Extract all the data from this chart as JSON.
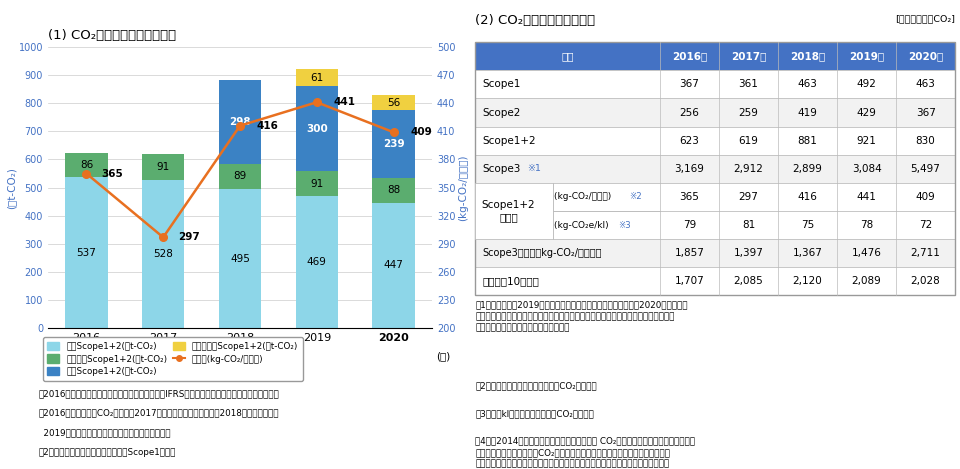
{
  "title_left": "(1) CO₂排出量・原単位の推移",
  "title_right": "(2) CO₂排出量実績・原単位",
  "unit_right_top": "[単位：千トンCO₂]",
  "years": [
    2016,
    2017,
    2018,
    2019,
    2020
  ],
  "japan_scope12": [
    537,
    528,
    495,
    469,
    447
  ],
  "oceania_scope12": [
    86,
    91,
    89,
    91,
    88
  ],
  "europe_scope12": [
    0,
    0,
    298,
    300,
    239
  ],
  "sea_scope12": [
    0,
    0,
    0,
    61,
    56
  ],
  "gentan_line": [
    365,
    297,
    416,
    441,
    409
  ],
  "bar_colors": {
    "japan": "#8DD6E8",
    "oceania": "#5BAD6F",
    "europe": "#3B82C4",
    "sea": "#F0D040"
  },
  "line_color": "#E87020",
  "left_ylabel": "(千t-CO₂)",
  "right_ylabel": "(kg-CO₂/百万円)",
  "left_ylim": [
    0,
    1000
  ],
  "right_ylim": [
    200,
    500
  ],
  "left_yticks": [
    0,
    100,
    200,
    300,
    400,
    500,
    600,
    700,
    800,
    900,
    1000
  ],
  "right_yticks": [
    200,
    230,
    260,
    290,
    320,
    350,
    380,
    410,
    440,
    470,
    500
  ],
  "xlabel": "(年)",
  "legend_items": [
    "日本Scope1+2(千t-CO₂)",
    "オセアニScope1+2(千t-CO₂)",
    "欧巚Scope1+2(千t-CO₂)",
    "東南アジアScope1+2(千t-CO₂)",
    "原単位(kg-CO₂/百万円)"
  ],
  "axis_label_color": "#4472C4",
  "table_header_color": "#4472C4",
  "col_headers": [
    "項目",
    "2016年",
    "2017年",
    "2018年",
    "2019年",
    "2020年"
  ],
  "row_data_simple": [
    [
      "Scope1",
      "367",
      "361",
      "463",
      "492",
      "463"
    ],
    [
      "Scope2",
      "256",
      "259",
      "419",
      "429",
      "367"
    ],
    [
      "Scope1+2",
      "623",
      "619",
      "881",
      "921",
      "830"
    ],
    [
      "Scope3",
      "3,169",
      "2,912",
      "2,899",
      "3,084",
      "5,497"
    ],
    [
      "Scope3原単位（kg-CO₂/百万円）",
      "1,857",
      "1,397",
      "1,367",
      "1,476",
      "2,711"
    ],
    [
      "売上高（10億円）",
      "1,707",
      "2,085",
      "2,120",
      "2,089",
      "2,028"
    ]
  ],
  "gentan_sub_a_vals": [
    "365",
    "297",
    "416",
    "441",
    "409"
  ],
  "gentan_sub_b_vals": [
    "79",
    "81",
    "75",
    "78",
    "72"
  ],
  "footnotes_left": [
    "2016年から原単位の算出に国際財務報告基準（IFRS）に準拠した売上収益を適用している。",
    "2016年からは海外CO₂排出量は2017年まではオセアニアのみ、",
    "2019年からは東南アジアが範囲に加わっている。",
    "2018年からは欧州、",
    "›集計範囲：日本および海外事楮のScope1＋２。"
  ],
  "footnotes_right": [
    "1　集計範囲：2019年まではアサヒビール、アサヒ飲料のみ　2020年からはア\n　　サヒビール、アサヒ飲料、アサヒヨーロッパアンドインターナショナル、アサヒ\n　　ホールディングスオーストラリア。",
    "2　売上収益に対する生産原単位CO₂排出量。",
    "3　製品klに対する生産原単位CO₂排出量。",
    "4　　2014年、日本の「グリーンエネルギー CO₂削減相当量認証制度」により、グ\n　　リーン電力証書によるCO₂削減貢献量を「地球温暖化対策の推進に関する法\n　　律（温対法）」に基づく温室効果ガス排出量算定・報告・公表制度などに活用\n　　できるようになり、そのため　2014年実績分からCO₂削減貢献量を反映できる\n　　が、本表にはグリーンエネルギーによるCO₂削減貢献量のみ記述している。"
  ]
}
